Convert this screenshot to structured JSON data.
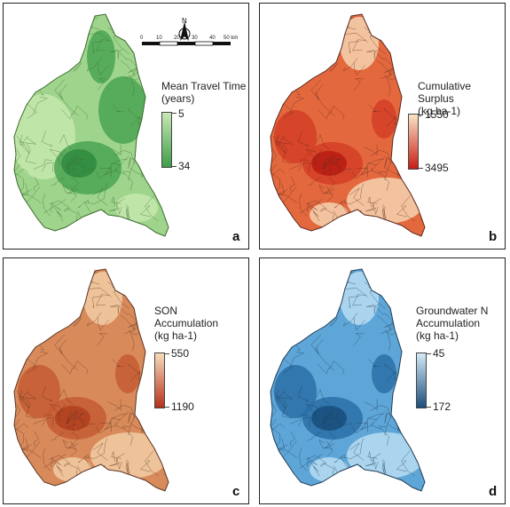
{
  "panels": [
    {
      "letter": "a",
      "legend_title": [
        "Mean Travel Time",
        "(years)"
      ],
      "low_value": "5",
      "high_value": "34",
      "colors": {
        "low": "#c8e8b4",
        "high": "#3f9e4a",
        "base": "#9fd48c",
        "stroke": "#3a6a2e",
        "patch_light": "#c6e8ae",
        "patch_dark": "#4aa552",
        "patch_darkest": "#2e8a40"
      }
    },
    {
      "letter": "b",
      "legend_title": [
        "Cumulative Surplus",
        "(kg ha-1)"
      ],
      "low_value": "1550",
      "high_value": "3495",
      "colors": {
        "low": "#fbe3c6",
        "high": "#c81d14",
        "base": "#e4683e",
        "stroke": "#5a2a1e",
        "patch_light": "#f6d4b0",
        "patch_dark": "#d43e26",
        "patch_darkest": "#b71b12"
      }
    },
    {
      "letter": "c",
      "legend_title": [
        "SON",
        "Accumulation",
        "(kg ha-1)"
      ],
      "low_value": "550",
      "high_value": "1190",
      "colors": {
        "low": "#f7dcbd",
        "high": "#b5311a",
        "base": "#d88a5a",
        "stroke": "#5a3322",
        "patch_light": "#f2cda4",
        "patch_dark": "#c55a34",
        "patch_darkest": "#b0401f"
      }
    },
    {
      "letter": "d",
      "legend_title": [
        "Groundwater N",
        "Accumulation",
        "(kg ha-1)"
      ],
      "low_value": "45",
      "high_value": "172",
      "colors": {
        "low": "#d4e9f7",
        "high": "#1c4f7c",
        "base": "#5ea6d8",
        "stroke": "#1f3d55",
        "patch_light": "#b9dcf2",
        "patch_dark": "#2a6fa6",
        "patch_darkest": "#174e7a"
      }
    }
  ],
  "scale_bar": {
    "ticks": [
      "0",
      "10",
      "20",
      "30",
      "40",
      "50 km"
    ]
  },
  "north_arrow": {
    "label": "N"
  }
}
